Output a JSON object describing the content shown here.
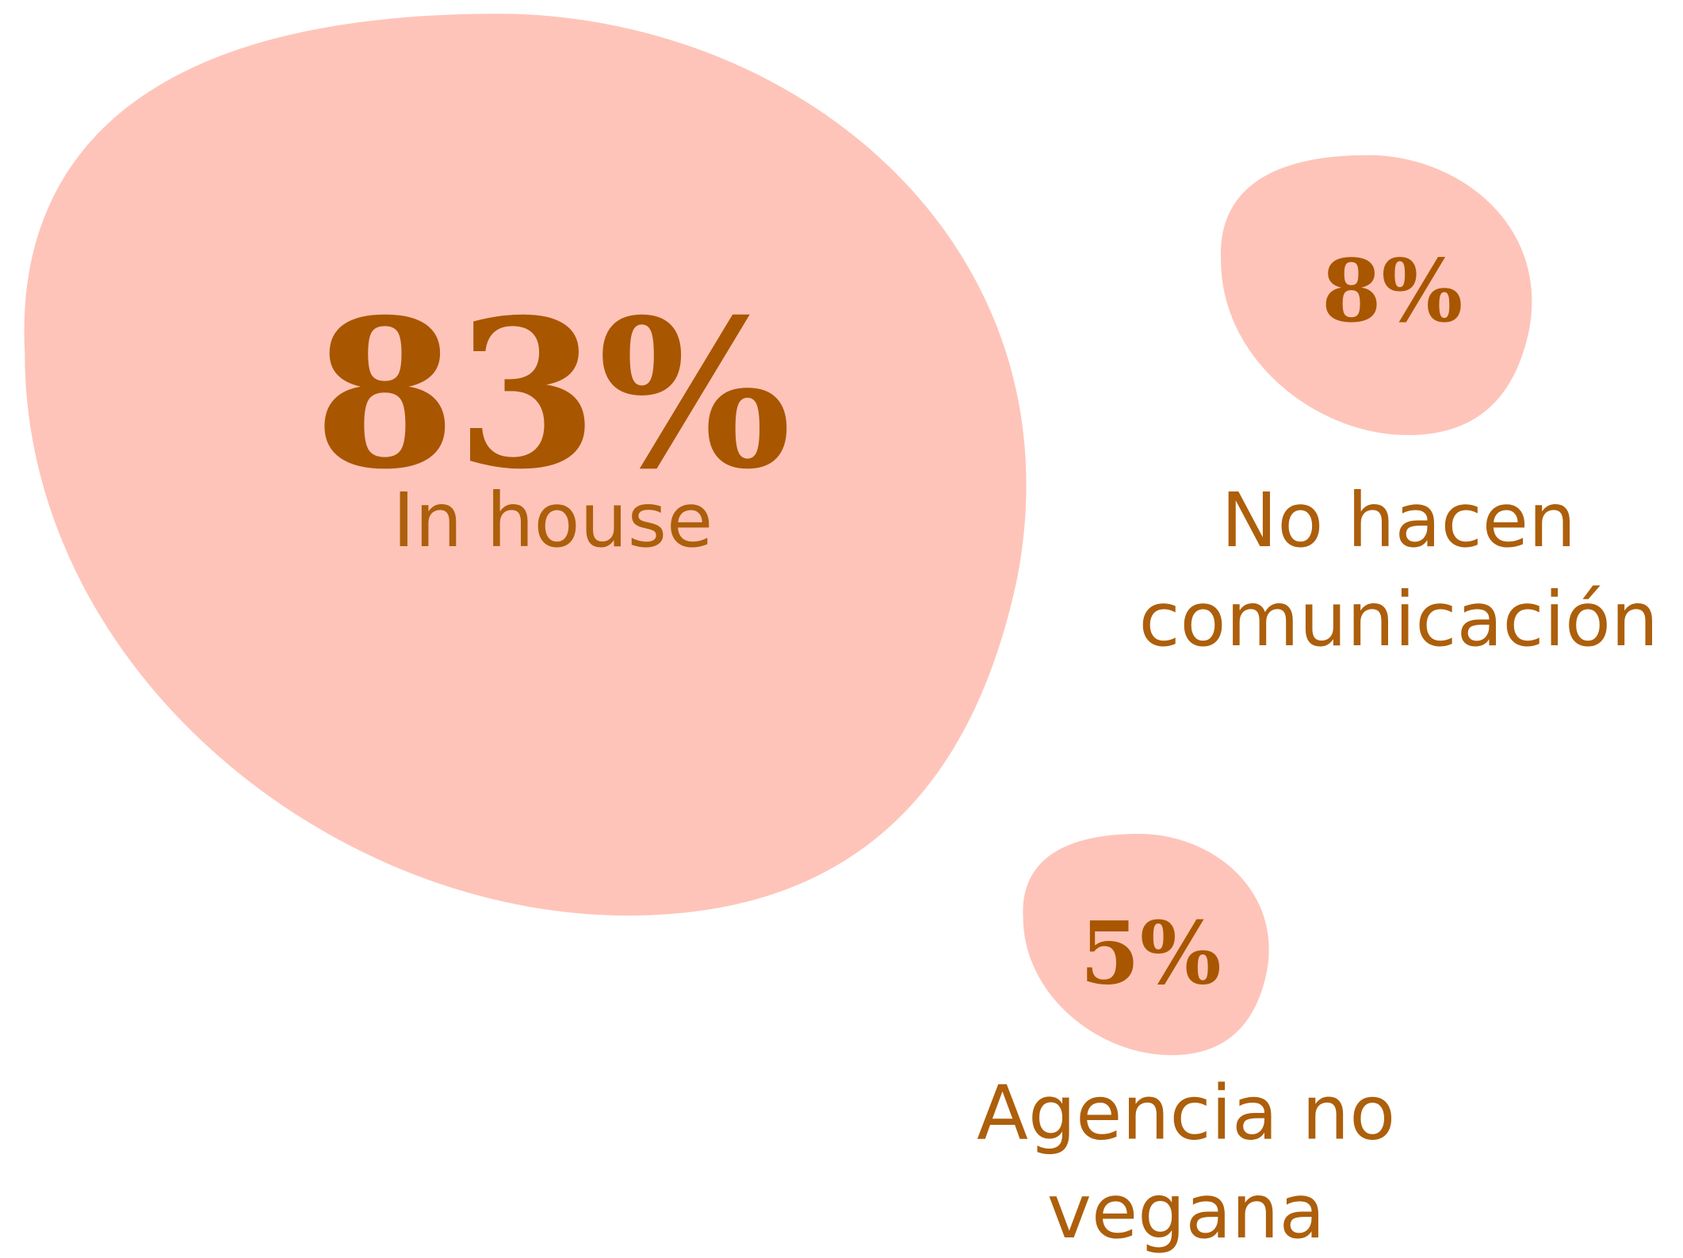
{
  "chart_data": {
    "type": "bubble",
    "categories": [
      "In house",
      "No hacen comunicación",
      "Agencia no vegana"
    ],
    "values": [
      83,
      8,
      5
    ],
    "value_labels": [
      "83%",
      "8%",
      "5%"
    ],
    "color": "#fec4b9"
  }
}
